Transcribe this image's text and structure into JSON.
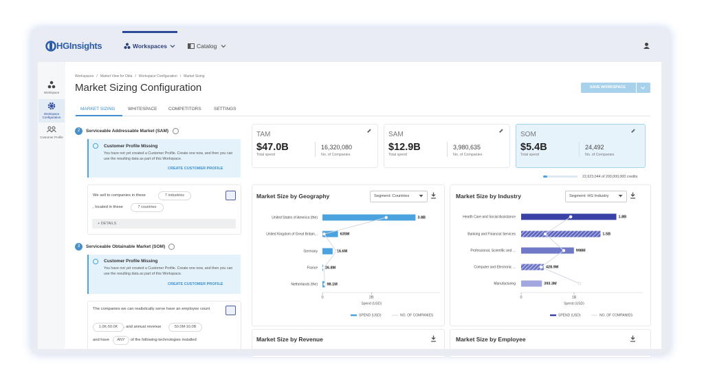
{
  "nav": {
    "logo": "HGInsights",
    "items": [
      "Workspaces",
      "Catalog"
    ]
  },
  "sidebar": [
    "Workspace",
    "Workspace Configuration",
    "Customer Profile"
  ],
  "breadcrumb": [
    "Workspaces",
    "Market View for Okta",
    "Workspace Configuration",
    "Market Sizing"
  ],
  "breadcrumb_separator": "/",
  "title": "Market Sizing Configuration",
  "save_button": "SAVE WORKSPACE",
  "tabs": [
    "MARKET SIZING",
    "WHITESPACE",
    "COMPETITORS",
    "SETTINGS"
  ],
  "sam_section": {
    "step": "2",
    "heading": "Serviceable Addressable Market (SAM)",
    "notice": {
      "title": "Customer Profile Missing",
      "text": "You have not yet created a Customer Profile. Create one now, and then you can use the resulting data as part of this Workspace.",
      "action": "CREATE CUSTOMER PROFILE"
    },
    "sentence": [
      "We sell to companies in these",
      "7 industries",
      ", located in these",
      "7 countries"
    ],
    "details": "+ DETAILS"
  },
  "som_section": {
    "step": "3",
    "heading": "Serviceable Obtainable Market (SOM)",
    "notice": {
      "title": "Customer Profile Missing",
      "text": "You have not yet created a Customer Profile. Create one now, and then you can use the resulting data as part of this Workspace.",
      "action": "CREATE CUSTOMER PROFILE"
    },
    "sentence": [
      "The companies we can realistically serve have an employee count",
      "1.0K-50.0K",
      ", and annual revenue",
      "50.0M-10.0B",
      "and have",
      "ANY",
      "of the following technologies installed"
    ]
  },
  "metrics": [
    {
      "label": "TAM",
      "spend": "$47.0B",
      "spend_label": "Total spend",
      "companies": "16,320,080",
      "companies_label": "No. of Companies"
    },
    {
      "label": "SAM",
      "spend": "$12.9B",
      "spend_label": "Total spend",
      "companies": "3,980,635",
      "companies_label": "No. of Companies"
    },
    {
      "label": "SOM",
      "spend": "$5.4B",
      "spend_label": "Total spend",
      "companies": "24,492",
      "companies_label": "No. of Companies"
    }
  ],
  "credits": {
    "used": 22623044,
    "total": 200000000,
    "label": "22,623,044 of 200,000,000 credits"
  },
  "geography_chart": {
    "type": "bar",
    "title": "Market Size by Geography",
    "segment": "Segment: Countries",
    "categories": [
      "United States of America (the)",
      "United Kingdom of Great Britain...",
      "Germany",
      "France",
      "Netherlands (the)"
    ],
    "values": [
      3.8,
      0.635,
      0.4166,
      0.0268,
      0.0981
    ],
    "value_labels": [
      "3.8B",
      "635M",
      "416.6M",
      "26.8M",
      "98.1M"
    ],
    "companies": [
      2170000,
      60000,
      470000,
      50000,
      80000
    ],
    "x2lim": [
      0,
      4000000
    ],
    "xlim": [
      0,
      4.8
    ],
    "xticks": [
      0,
      {
        "value": 2,
        "label": "2B"
      }
    ],
    "x_label": "Spend (USD)",
    "bar_colors": [
      "#4aa3df",
      "#4aa3df",
      "#4aa3df",
      "#4aa3df",
      "#4aa3df"
    ],
    "hatched": [
      false,
      false,
      false,
      false,
      false
    ],
    "series": [
      {
        "name": "SPEND (USD)",
        "color": "#4aa3df"
      },
      {
        "name": "NO. OF COMPANIES",
        "color": "#d3d9e2"
      }
    ]
  },
  "industry_chart": {
    "type": "bar",
    "title": "Market Size by Industry",
    "segment": "Segment: HG Industry",
    "categories": [
      "Health Care and Social Assistance",
      "Banking and Financial Services",
      "Professional, Scientific and ...",
      "Computer and Electronic ...",
      "Manufacturing"
    ],
    "values": [
      1.8,
      1.5,
      0.998,
      0.4289,
      0.3933
    ],
    "value_labels": [
      "1.8B",
      "1.5B",
      "998M",
      "428.9M",
      "393.3M"
    ],
    "companies": [
      4070,
      1980,
      3500,
      1640,
      4800
    ],
    "x2lim": [
      0,
      10000
    ],
    "xlim": [
      0,
      2.3
    ],
    "xticks": [
      0,
      {
        "value": 1,
        "label": "1B"
      }
    ],
    "x_label": "Spend (USD)",
    "bar_colors": [
      "#3a42a6",
      "#5b63bd",
      "#7078c8",
      "#6a72c4",
      "#a2a8df"
    ],
    "hatched": [
      false,
      true,
      false,
      true,
      false
    ],
    "series": [
      {
        "name": "SPEND (USD)",
        "color": "#3a42a6"
      },
      {
        "name": "NO. OF COMPANIES",
        "color": "#d3d9e2"
      }
    ]
  },
  "bottom_cards": [
    "Market Size by Revenue",
    "Market Size by Employee"
  ]
}
